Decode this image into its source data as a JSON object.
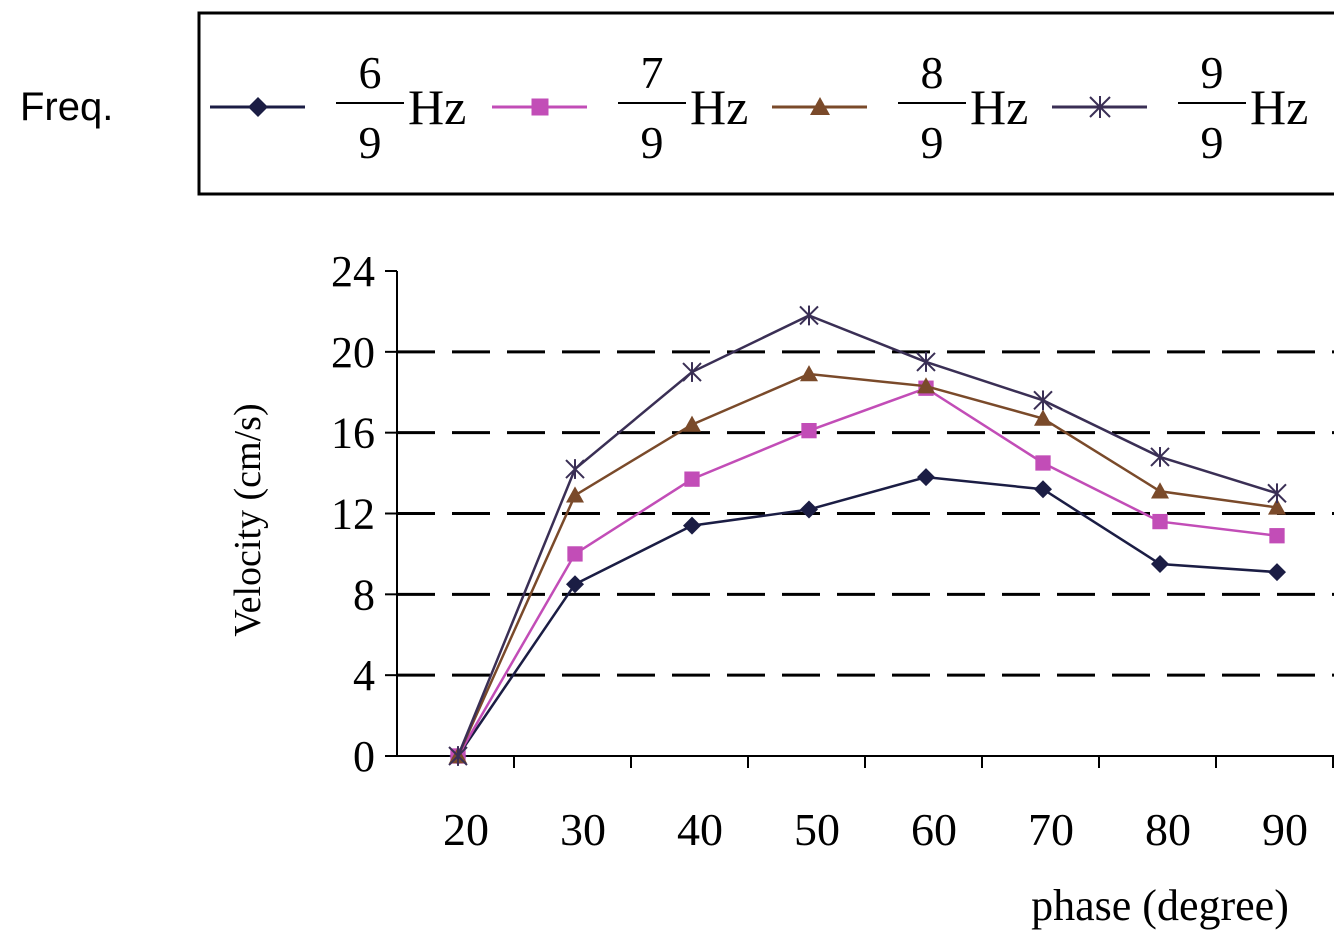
{
  "chart_data": {
    "type": "line",
    "legend_title": "Freq.",
    "legend_position": "top",
    "x": [
      20,
      30,
      40,
      50,
      60,
      70,
      80,
      90
    ],
    "xlabel": "phase (degree)",
    "ylabel": "Velocity (cm/s)",
    "ylim": [
      0,
      24
    ],
    "yticks": [
      0,
      4,
      8,
      12,
      16,
      20,
      24
    ],
    "grid": "horizontal dashed",
    "series": [
      {
        "name": "6/9 Hz",
        "numerator": "6",
        "denominator": "9",
        "unit": "Hz",
        "marker": "diamond",
        "color": "#1b1d44",
        "values": [
          0,
          8.5,
          11.4,
          12.2,
          13.8,
          13.2,
          9.5,
          9.1
        ]
      },
      {
        "name": "7/9 Hz",
        "numerator": "7",
        "denominator": "9",
        "unit": "Hz",
        "marker": "square",
        "color": "#c24db7",
        "values": [
          0,
          10.0,
          13.7,
          16.1,
          18.2,
          14.5,
          11.6,
          10.9
        ]
      },
      {
        "name": "8/9 Hz",
        "numerator": "8",
        "denominator": "9",
        "unit": "Hz",
        "marker": "triangle",
        "color": "#7a4a2a",
        "values": [
          0,
          12.9,
          16.4,
          18.9,
          18.3,
          16.7,
          13.1,
          12.3
        ]
      },
      {
        "name": "9/9 Hz",
        "numerator": "9",
        "denominator": "9",
        "unit": "Hz",
        "marker": "star",
        "color": "#3a2f55",
        "values": [
          0,
          14.2,
          19.0,
          21.8,
          19.5,
          17.6,
          14.8,
          13.0
        ]
      }
    ]
  }
}
